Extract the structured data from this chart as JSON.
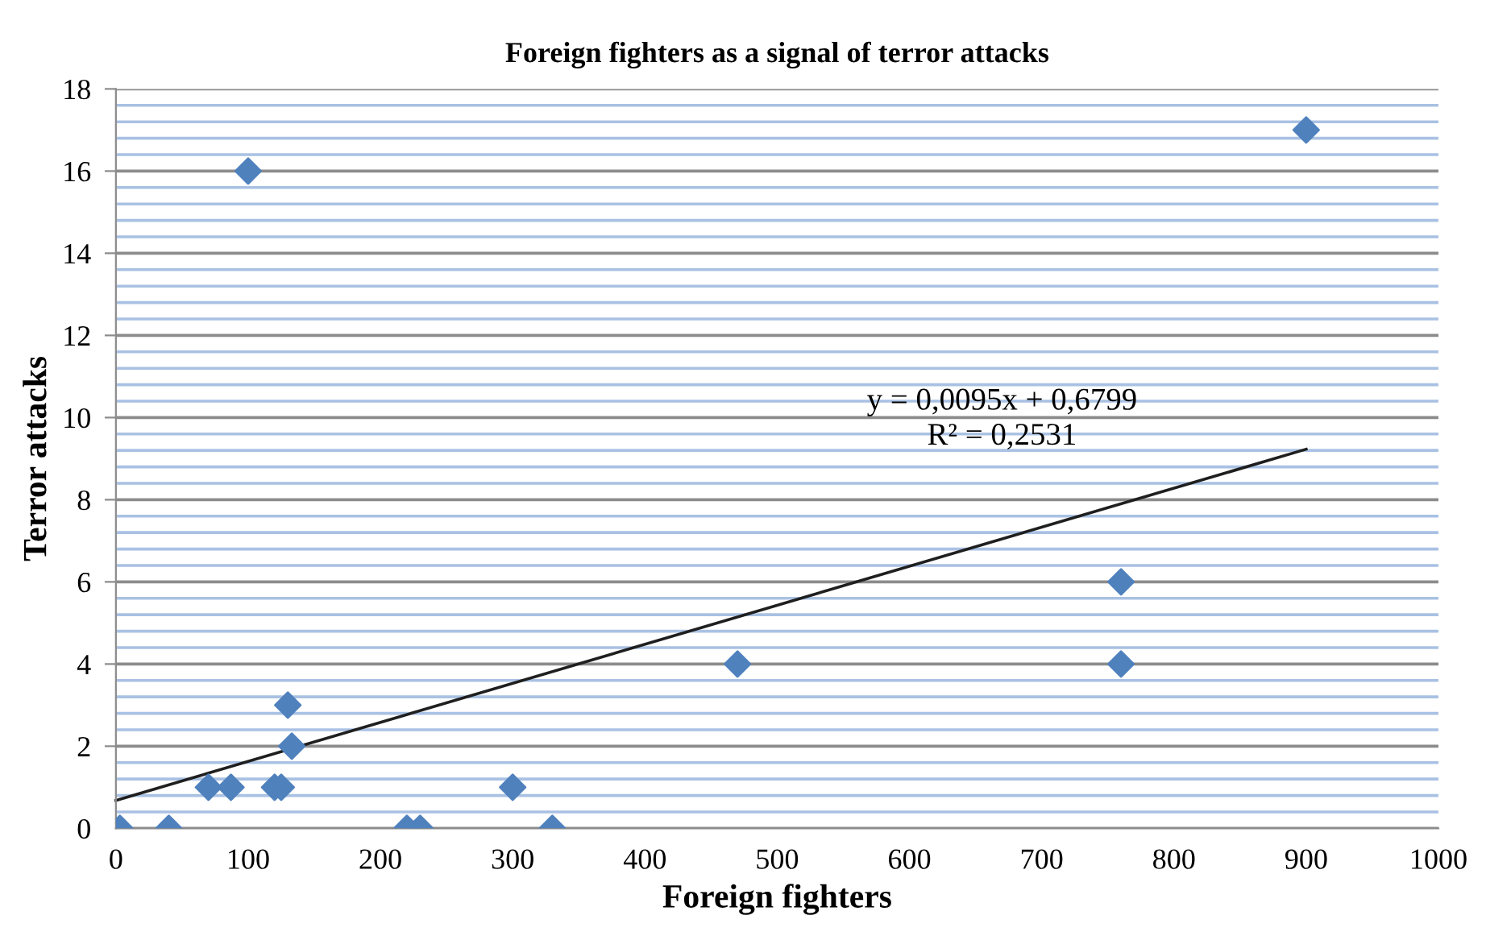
{
  "chart_data": {
    "type": "scatter",
    "title": "Foreign fighters as a signal of terror attacks",
    "xlabel": "Foreign fighters",
    "ylabel": "Terror attacks",
    "series": [
      {
        "color": "#4f81bd",
        "marker": "diamond",
        "x": [
          3,
          40,
          70,
          87,
          120,
          125,
          130,
          133,
          100,
          220,
          230,
          300,
          330,
          470,
          760,
          760,
          900
        ],
        "values": [
          0,
          0,
          1,
          1,
          1,
          1,
          3,
          2,
          16,
          0,
          0,
          1,
          0,
          4,
          6,
          4,
          17
        ]
      },
      {
        "type": "line",
        "color": "#1f1f1f",
        "marker": "none",
        "line_style": "solid",
        "x": [
          0,
          900
        ],
        "values": [
          0.68,
          9.23
        ]
      }
    ],
    "annotations": [
      "y = 0,0095x + 0,6799\nR² = 0,2531"
    ],
    "xlim": [
      0,
      1000
    ],
    "xticks": [
      0,
      100,
      200,
      300,
      400,
      500,
      600,
      700,
      800,
      900,
      1000
    ],
    "ylim": [
      0,
      18
    ],
    "yticks": [
      0,
      {
        "value": 0.4,
        "label": null
      },
      {
        "value": 0.8,
        "label": null
      },
      {
        "value": 1.2,
        "label": null
      },
      {
        "value": 1.6,
        "label": null
      },
      2,
      {
        "value": 2.4,
        "label": null
      },
      {
        "value": 2.8,
        "label": null
      },
      {
        "value": 3.2,
        "label": null
      },
      {
        "value": 3.6,
        "label": null
      },
      4,
      {
        "value": 4.4,
        "label": null
      },
      {
        "value": 4.8,
        "label": null
      },
      {
        "value": 5.2,
        "label": null
      },
      {
        "value": 5.6,
        "label": null
      },
      6,
      {
        "value": 6.4,
        "label": null
      },
      {
        "value": 6.8,
        "label": null
      },
      {
        "value": 7.2,
        "label": null
      },
      {
        "value": 7.6,
        "label": null
      },
      8,
      {
        "value": 8.4,
        "label": null
      },
      {
        "value": 8.8,
        "label": null
      },
      {
        "value": 9.2,
        "label": null
      },
      {
        "value": 9.6,
        "label": null
      },
      10,
      {
        "value": 10.4,
        "label": null
      },
      {
        "value": 10.8,
        "label": null
      },
      {
        "value": 11.2,
        "label": null
      },
      {
        "value": 11.6,
        "label": null
      },
      12,
      {
        "value": 12.4,
        "label": null
      },
      {
        "value": 12.8,
        "label": null
      },
      {
        "value": 13.2,
        "label": null
      },
      {
        "value": 13.6,
        "label": null
      },
      14,
      {
        "value": 14.4,
        "label": null
      },
      {
        "value": 14.8,
        "label": null
      },
      {
        "value": 15.2,
        "label": null
      },
      {
        "value": 15.6,
        "label": null
      },
      16,
      {
        "value": 16.4,
        "label": null
      },
      {
        "value": 16.8,
        "label": null
      },
      {
        "value": 17.2,
        "label": null
      },
      {
        "value": 17.6,
        "label": null
      },
      18
    ],
    "grid": "y",
    "legend": false
  }
}
